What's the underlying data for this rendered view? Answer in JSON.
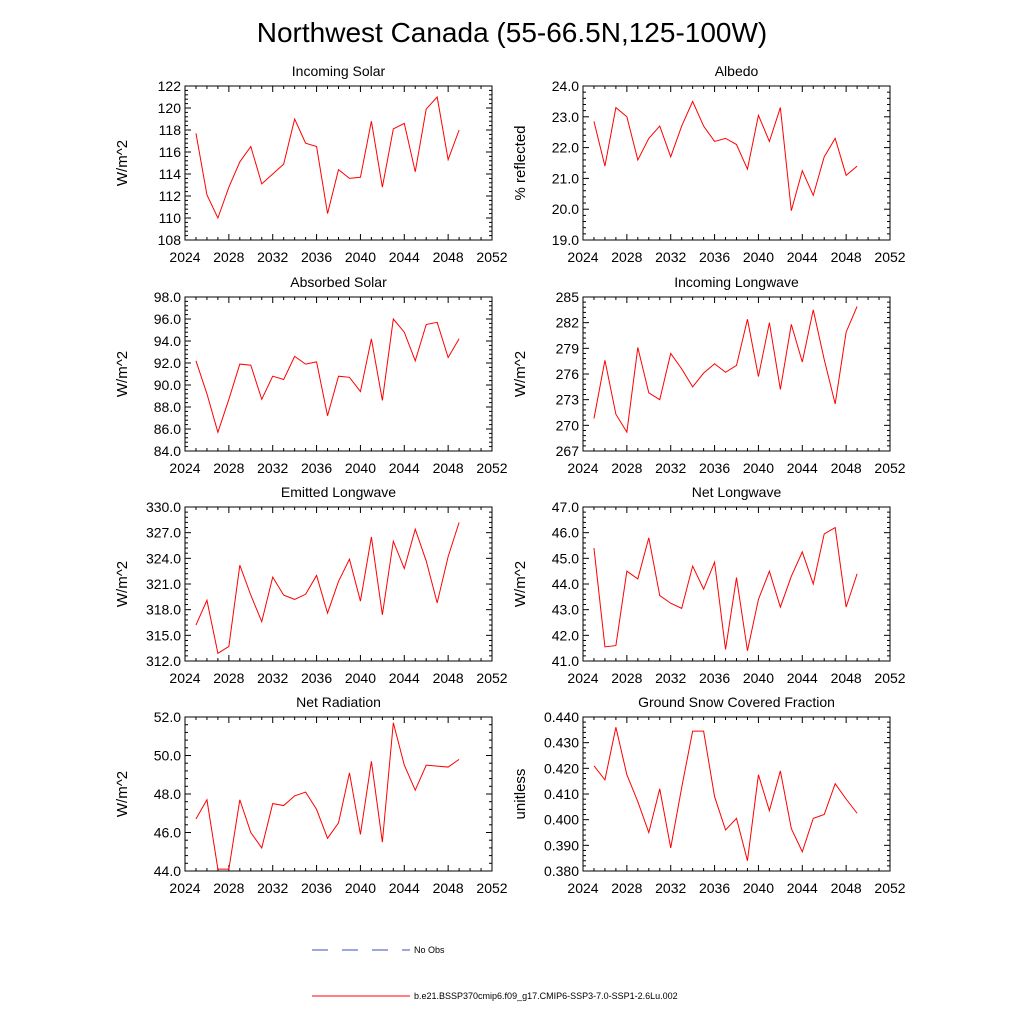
{
  "figure": {
    "title": "Northwest Canada (55-66.5N,125-100W)",
    "legend": [
      {
        "label": "No Obs",
        "color": "#3b4cc0",
        "dash": "dashed"
      },
      {
        "label": "b.e21.BSSP370cmip6.f09_g17.CMIP6-SSP3-7.0-SSP1-2.6Lu.002",
        "color": "#ff0000",
        "dash": "solid"
      }
    ]
  },
  "chart_data": [
    {
      "type": "line",
      "title": "Incoming Solar",
      "ylabel": "W/m^2",
      "xlim": [
        2024,
        2052
      ],
      "ylim": [
        108,
        122
      ],
      "xticks": [
        2024,
        2028,
        2032,
        2036,
        2040,
        2044,
        2048,
        2052
      ],
      "yticks": [
        108,
        110,
        112,
        114,
        116,
        118,
        120,
        122
      ],
      "yticklabels": [
        "108",
        "110",
        "112",
        "114",
        "116",
        "118",
        "120",
        "122"
      ],
      "x": [
        2025,
        2026,
        2027,
        2028,
        2029,
        2030,
        2031,
        2032,
        2033,
        2034,
        2035,
        2036,
        2037,
        2038,
        2039,
        2040,
        2041,
        2042,
        2043,
        2044,
        2045,
        2046,
        2047,
        2048,
        2049
      ],
      "series": [
        {
          "color": "#ff0000",
          "values": [
            117.7,
            112.1,
            110.0,
            112.8,
            115.1,
            116.5,
            113.1,
            114.0,
            114.9,
            119.0,
            116.8,
            116.5,
            110.4,
            114.4,
            113.6,
            113.7,
            118.8,
            112.8,
            118.1,
            118.6,
            114.2,
            119.9,
            121.0,
            115.3,
            118.0
          ]
        }
      ]
    },
    {
      "type": "line",
      "title": "Albedo",
      "ylabel": "% reflected",
      "xlim": [
        2024,
        2052
      ],
      "ylim": [
        19.0,
        24.0
      ],
      "xticks": [
        2024,
        2028,
        2032,
        2036,
        2040,
        2044,
        2048,
        2052
      ],
      "yticks": [
        19,
        20,
        21,
        22,
        23,
        24
      ],
      "yticklabels": [
        "19.0",
        "20.0",
        "21.0",
        "22.0",
        "23.0",
        "24.0"
      ],
      "x": [
        2025,
        2026,
        2027,
        2028,
        2029,
        2030,
        2031,
        2032,
        2033,
        2034,
        2035,
        2036,
        2037,
        2038,
        2039,
        2040,
        2041,
        2042,
        2043,
        2044,
        2045,
        2046,
        2047,
        2048,
        2049
      ],
      "series": [
        {
          "color": "#ff0000",
          "values": [
            22.85,
            21.4,
            23.3,
            23.0,
            21.6,
            22.3,
            22.7,
            21.7,
            22.7,
            23.5,
            22.7,
            22.2,
            22.3,
            22.1,
            21.3,
            23.05,
            22.2,
            23.3,
            19.95,
            21.25,
            20.45,
            21.7,
            22.3,
            21.1,
            21.4
          ]
        }
      ]
    },
    {
      "type": "line",
      "title": "Absorbed Solar",
      "ylabel": "W/m^2",
      "xlim": [
        2024,
        2052
      ],
      "ylim": [
        84.0,
        98.0
      ],
      "xticks": [
        2024,
        2028,
        2032,
        2036,
        2040,
        2044,
        2048,
        2052
      ],
      "yticks": [
        84,
        86,
        88,
        90,
        92,
        94,
        96,
        98
      ],
      "yticklabels": [
        "84.0",
        "86.0",
        "88.0",
        "90.0",
        "92.0",
        "94.0",
        "96.0",
        "98.0"
      ],
      "x": [
        2025,
        2026,
        2027,
        2028,
        2029,
        2030,
        2031,
        2032,
        2033,
        2034,
        2035,
        2036,
        2037,
        2038,
        2039,
        2040,
        2041,
        2042,
        2043,
        2044,
        2045,
        2046,
        2047,
        2048,
        2049
      ],
      "series": [
        {
          "color": "#ff0000",
          "values": [
            92.2,
            89.2,
            85.7,
            88.7,
            91.9,
            91.8,
            88.7,
            90.8,
            90.5,
            92.6,
            91.9,
            92.1,
            87.2,
            90.8,
            90.7,
            89.4,
            94.2,
            88.6,
            96.0,
            94.8,
            92.2,
            95.5,
            95.7,
            92.5,
            94.2
          ]
        }
      ]
    },
    {
      "type": "line",
      "title": "Incoming Longwave",
      "ylabel": "W/m^2",
      "xlim": [
        2024,
        2052
      ],
      "ylim": [
        267,
        285
      ],
      "xticks": [
        2024,
        2028,
        2032,
        2036,
        2040,
        2044,
        2048,
        2052
      ],
      "yticks": [
        267,
        270,
        273,
        276,
        279,
        282,
        285
      ],
      "yticklabels": [
        "267",
        "270",
        "273",
        "276",
        "279",
        "282",
        "285"
      ],
      "x": [
        2025,
        2026,
        2027,
        2028,
        2029,
        2030,
        2031,
        2032,
        2033,
        2034,
        2035,
        2036,
        2037,
        2038,
        2039,
        2040,
        2041,
        2042,
        2043,
        2044,
        2045,
        2046,
        2047,
        2048,
        2049
      ],
      "series": [
        {
          "color": "#ff0000",
          "values": [
            270.8,
            277.6,
            271.3,
            269.2,
            279.1,
            273.8,
            273.0,
            278.4,
            276.6,
            274.5,
            276.1,
            277.2,
            276.2,
            277.0,
            282.4,
            275.7,
            282.0,
            274.2,
            281.8,
            277.4,
            283.5,
            277.7,
            272.5,
            280.9,
            283.9
          ]
        }
      ]
    },
    {
      "type": "line",
      "title": "Emitted Longwave",
      "ylabel": "W/m^2",
      "xlim": [
        2024,
        2052
      ],
      "ylim": [
        312.0,
        330.0
      ],
      "xticks": [
        2024,
        2028,
        2032,
        2036,
        2040,
        2044,
        2048,
        2052
      ],
      "yticks": [
        312,
        315,
        318,
        321,
        324,
        327,
        330
      ],
      "yticklabels": [
        "312.0",
        "315.0",
        "318.0",
        "321.0",
        "324.0",
        "327.0",
        "330.0"
      ],
      "x": [
        2025,
        2026,
        2027,
        2028,
        2029,
        2030,
        2031,
        2032,
        2033,
        2034,
        2035,
        2036,
        2037,
        2038,
        2039,
        2040,
        2041,
        2042,
        2043,
        2044,
        2045,
        2046,
        2047,
        2048,
        2049
      ],
      "series": [
        {
          "color": "#ff0000",
          "values": [
            316.2,
            319.1,
            312.9,
            313.7,
            323.2,
            319.7,
            316.6,
            321.8,
            319.7,
            319.2,
            319.8,
            322.0,
            317.6,
            321.3,
            323.9,
            319.0,
            326.5,
            317.4,
            326.0,
            322.8,
            327.4,
            323.7,
            318.8,
            324.2,
            328.2
          ]
        }
      ]
    },
    {
      "type": "line",
      "title": "Net Longwave",
      "ylabel": "W/m^2",
      "xlim": [
        2024,
        2052
      ],
      "ylim": [
        41.0,
        47.0
      ],
      "xticks": [
        2024,
        2028,
        2032,
        2036,
        2040,
        2044,
        2048,
        2052
      ],
      "yticks": [
        41,
        42,
        43,
        44,
        45,
        46,
        47
      ],
      "yticklabels": [
        "41.0",
        "42.0",
        "43.0",
        "44.0",
        "45.0",
        "46.0",
        "47.0"
      ],
      "x": [
        2025,
        2026,
        2027,
        2028,
        2029,
        2030,
        2031,
        2032,
        2033,
        2034,
        2035,
        2036,
        2037,
        2038,
        2039,
        2040,
        2041,
        2042,
        2043,
        2044,
        2045,
        2046,
        2047,
        2048,
        2049
      ],
      "series": [
        {
          "color": "#ff0000",
          "values": [
            45.4,
            41.55,
            41.6,
            44.5,
            44.2,
            45.8,
            43.55,
            43.25,
            43.05,
            44.7,
            43.8,
            44.85,
            41.45,
            44.25,
            41.4,
            43.4,
            44.5,
            43.1,
            44.3,
            45.25,
            44.0,
            45.95,
            46.2,
            43.1,
            44.4
          ]
        }
      ]
    },
    {
      "type": "line",
      "title": "Net Radiation",
      "ylabel": "W/m^2",
      "xlim": [
        2024,
        2052
      ],
      "ylim": [
        44.0,
        52.0
      ],
      "xticks": [
        2024,
        2028,
        2032,
        2036,
        2040,
        2044,
        2048,
        2052
      ],
      "yticks": [
        44,
        46,
        48,
        50,
        52
      ],
      "yticklabels": [
        "44.0",
        "46.0",
        "48.0",
        "50.0",
        "52.0"
      ],
      "x": [
        2025,
        2026,
        2027,
        2028,
        2029,
        2030,
        2031,
        2032,
        2033,
        2034,
        2035,
        2036,
        2037,
        2038,
        2039,
        2040,
        2041,
        2042,
        2043,
        2044,
        2045,
        2046,
        2047,
        2048,
        2049
      ],
      "series": [
        {
          "color": "#ff0000",
          "values": [
            46.7,
            47.7,
            44.1,
            44.1,
            47.7,
            46.0,
            45.2,
            47.5,
            47.4,
            47.9,
            48.1,
            47.2,
            45.7,
            46.5,
            49.1,
            45.9,
            49.7,
            45.5,
            51.7,
            49.5,
            48.2,
            49.5,
            49.45,
            49.4,
            49.8
          ]
        }
      ]
    },
    {
      "type": "line",
      "title": "Ground Snow Covered Fraction",
      "ylabel": "unitless",
      "xlim": [
        2024,
        2052
      ],
      "ylim": [
        0.38,
        0.44
      ],
      "xticks": [
        2024,
        2028,
        2032,
        2036,
        2040,
        2044,
        2048,
        2052
      ],
      "yticks": [
        0.38,
        0.39,
        0.4,
        0.41,
        0.42,
        0.43,
        0.44
      ],
      "yticklabels": [
        "0.380",
        "0.390",
        "0.400",
        "0.410",
        "0.420",
        "0.430",
        "0.440"
      ],
      "x": [
        2025,
        2026,
        2027,
        2028,
        2029,
        2030,
        2031,
        2032,
        2033,
        2034,
        2035,
        2036,
        2037,
        2038,
        2039,
        2040,
        2041,
        2042,
        2043,
        2044,
        2045,
        2046,
        2047,
        2048,
        2049
      ],
      "series": [
        {
          "color": "#ff0000",
          "values": [
            0.421,
            0.4155,
            0.436,
            0.4175,
            0.407,
            0.395,
            0.412,
            0.389,
            0.4125,
            0.4345,
            0.4345,
            0.409,
            0.396,
            0.4005,
            0.384,
            0.4175,
            0.4035,
            0.419,
            0.3965,
            0.3875,
            0.4005,
            0.402,
            0.414,
            0.408,
            0.4025
          ]
        }
      ]
    }
  ]
}
